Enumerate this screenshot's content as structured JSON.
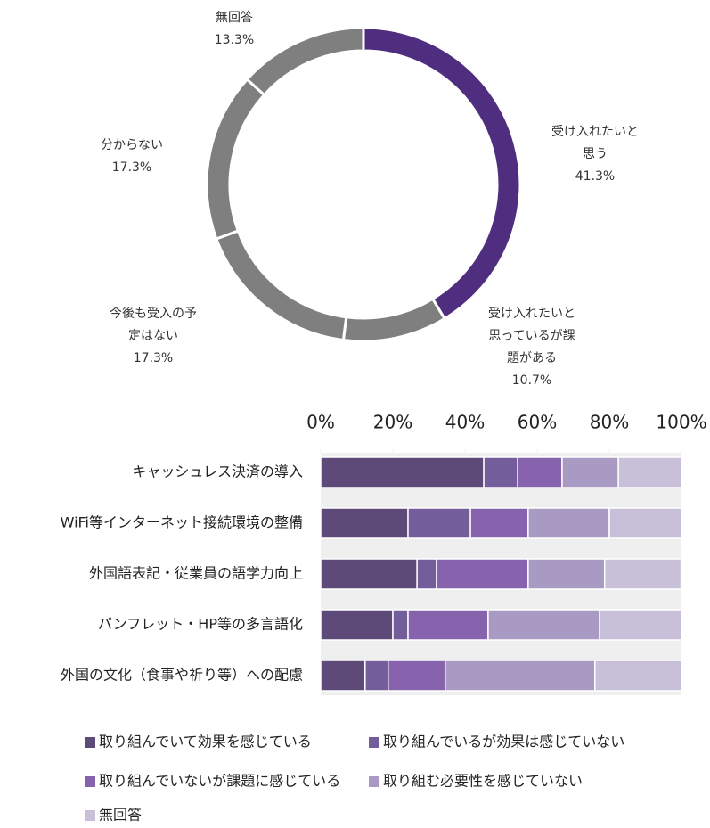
{
  "chart_data": [
    {
      "type": "donut",
      "categories": [
        [
          "受け入れたいと",
          "思う"
        ],
        [
          "受け入れたいと",
          "思っているが課",
          "題がある"
        ],
        [
          "今後も受入の予",
          "定はない"
        ],
        [
          "分からない"
        ],
        [
          "無回答"
        ]
      ],
      "values": [
        41.3,
        10.7,
        17.3,
        17.3,
        13.3
      ],
      "value_labels": [
        "41.3%",
        "10.7%",
        "17.3%",
        "17.3%",
        "13.3%"
      ],
      "colors": [
        "#4f2d7f",
        "#7f7f7f",
        "#7f7f7f",
        "#7f7f7f",
        "#7f7f7f"
      ]
    },
    {
      "type": "stacked-bar-horizontal",
      "categories": [
        "キャッシュレス決済の導入",
        "WiFi等インターネット接続環境の整備",
        "外国語表記・従業員の語学力向上",
        "パンフレット・HP等の多言語化",
        "外国の文化（食事や祈り等）への配慮"
      ],
      "series": [
        {
          "name": "取り組んでいて効果を感じている",
          "color": "#5e4a78",
          "values": [
            45.2,
            24.2,
            26.7,
            20.0,
            12.3
          ]
        },
        {
          "name": "取り組んでいるが効果は感じていない",
          "color": "#735d9a",
          "values": [
            9.4,
            17.3,
            5.4,
            4.2,
            6.4
          ]
        },
        {
          "name": "取り組んでいないが課題に感じている",
          "color": "#8763ad",
          "values": [
            12.3,
            16.0,
            25.4,
            22.2,
            15.8
          ]
        },
        {
          "name": "取り組む必要性を感じていない",
          "color": "#a99ac4",
          "values": [
            15.6,
            22.5,
            21.2,
            30.9,
            41.5
          ]
        },
        {
          "name": "無回答",
          "color": "#c7c0d8",
          "values": [
            17.5,
            20.0,
            21.2,
            22.7,
            24.0
          ]
        }
      ],
      "xlim": [
        0,
        100
      ],
      "xticks": [
        {
          "value": 0,
          "label": "0%"
        },
        {
          "value": 20,
          "label": "20%"
        },
        {
          "value": 40,
          "label": "40%"
        },
        {
          "value": 60,
          "label": "60%"
        },
        {
          "value": 80,
          "label": "80%"
        },
        {
          "value": 100,
          "label": "100%"
        }
      ]
    }
  ]
}
